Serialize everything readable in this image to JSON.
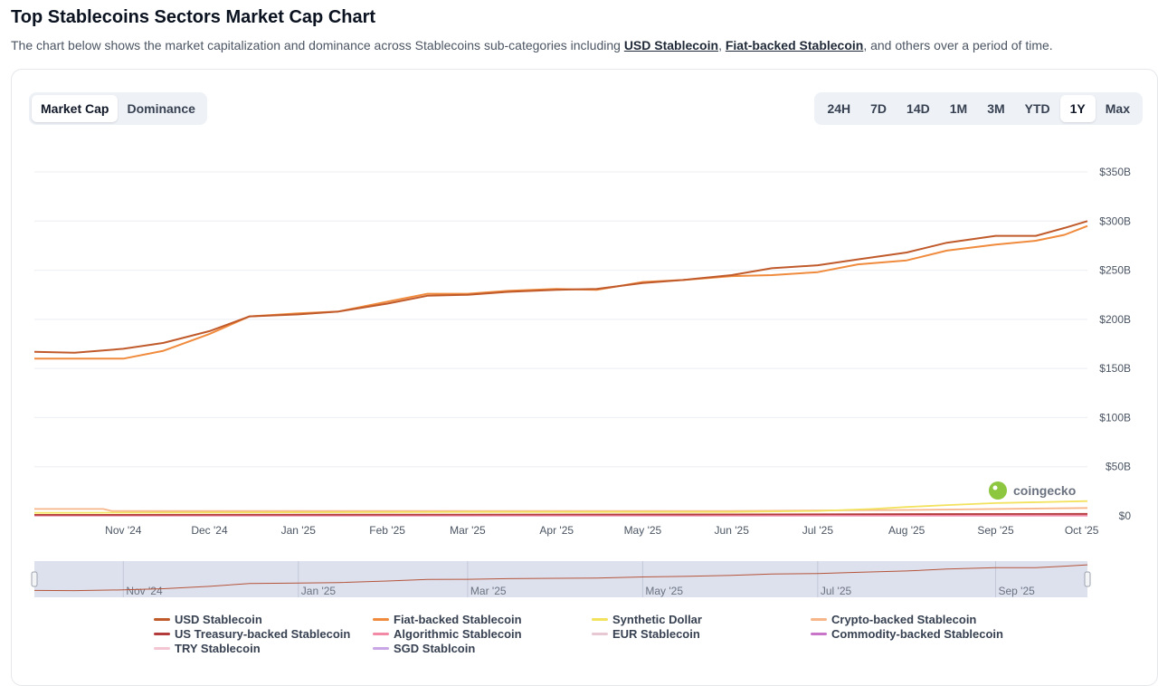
{
  "header": {
    "title": "Top Stablecoins Sectors Market Cap Chart",
    "description_prefix": "The chart below shows the market capitalization and dominance across Stablecoins sub-categories including ",
    "link1": "USD Stablecoin",
    "sep": ", ",
    "link2": "Fiat-backed Stablecoin",
    "description_suffix": ", and others over a period of time."
  },
  "metric_tabs": [
    {
      "label": "Market Cap",
      "active": true
    },
    {
      "label": "Dominance",
      "active": false
    }
  ],
  "range_tabs": [
    {
      "label": "24H",
      "active": false
    },
    {
      "label": "7D",
      "active": false
    },
    {
      "label": "14D",
      "active": false
    },
    {
      "label": "1M",
      "active": false
    },
    {
      "label": "3M",
      "active": false
    },
    {
      "label": "YTD",
      "active": false
    },
    {
      "label": "1Y",
      "active": true
    },
    {
      "label": "Max",
      "active": false
    }
  ],
  "watermark": "coingecko",
  "chart_data": {
    "type": "line",
    "title": "",
    "xlabel": "",
    "ylabel": "",
    "x_domain": [
      "2024-10-01",
      "2025-10-03"
    ],
    "ylim": [
      0,
      350
    ],
    "y_unit": "B USD",
    "y_ticks": [
      {
        "value": 0,
        "label": "$0"
      },
      {
        "value": 50,
        "label": "$50B"
      },
      {
        "value": 100,
        "label": "$100B"
      },
      {
        "value": 150,
        "label": "$150B"
      },
      {
        "value": 200,
        "label": "$200B"
      },
      {
        "value": 250,
        "label": "$250B"
      },
      {
        "value": 300,
        "label": "$300B"
      },
      {
        "value": 350,
        "label": "$350B"
      }
    ],
    "x_ticks": [
      {
        "date": "2024-11-01",
        "label": "Nov '24"
      },
      {
        "date": "2024-12-01",
        "label": "Dec '24"
      },
      {
        "date": "2025-01-01",
        "label": "Jan '25"
      },
      {
        "date": "2025-02-01",
        "label": "Feb '25"
      },
      {
        "date": "2025-03-01",
        "label": "Mar '25"
      },
      {
        "date": "2025-04-01",
        "label": "Apr '25"
      },
      {
        "date": "2025-05-01",
        "label": "May '25"
      },
      {
        "date": "2025-06-01",
        "label": "Jun '25"
      },
      {
        "date": "2025-07-01",
        "label": "Jul '25"
      },
      {
        "date": "2025-08-01",
        "label": "Aug '25"
      },
      {
        "date": "2025-09-01",
        "label": "Sep '25"
      },
      {
        "date": "2025-10-01",
        "label": "Oct '25"
      }
    ],
    "grid": true,
    "legend_position": "bottom",
    "series": [
      {
        "name": "USD Stablecoin",
        "color": "#c05a2b",
        "points": [
          [
            "2024-10-01",
            167
          ],
          [
            "2024-10-15",
            166
          ],
          [
            "2024-11-01",
            170
          ],
          [
            "2024-11-15",
            176
          ],
          [
            "2024-12-01",
            188
          ],
          [
            "2024-12-15",
            203
          ],
          [
            "2025-01-01",
            205
          ],
          [
            "2025-01-15",
            208
          ],
          [
            "2025-02-01",
            216
          ],
          [
            "2025-02-15",
            224
          ],
          [
            "2025-03-01",
            225
          ],
          [
            "2025-03-15",
            228
          ],
          [
            "2025-04-01",
            230
          ],
          [
            "2025-04-15",
            231
          ],
          [
            "2025-05-01",
            237
          ],
          [
            "2025-05-15",
            240
          ],
          [
            "2025-06-01",
            245
          ],
          [
            "2025-06-15",
            252
          ],
          [
            "2025-07-01",
            255
          ],
          [
            "2025-07-15",
            261
          ],
          [
            "2025-08-01",
            268
          ],
          [
            "2025-08-15",
            278
          ],
          [
            "2025-09-01",
            285
          ],
          [
            "2025-09-15",
            285
          ],
          [
            "2025-09-25",
            293
          ],
          [
            "2025-10-03",
            300
          ]
        ]
      },
      {
        "name": "Fiat-backed Stablecoin",
        "color": "#f08a3c",
        "points": [
          [
            "2024-10-01",
            160
          ],
          [
            "2024-10-15",
            160
          ],
          [
            "2024-11-01",
            160
          ],
          [
            "2024-11-15",
            168
          ],
          [
            "2024-12-01",
            185
          ],
          [
            "2024-12-15",
            203
          ],
          [
            "2025-01-01",
            206
          ],
          [
            "2025-01-15",
            208
          ],
          [
            "2025-02-01",
            218
          ],
          [
            "2025-02-15",
            226
          ],
          [
            "2025-03-01",
            226
          ],
          [
            "2025-03-15",
            229
          ],
          [
            "2025-04-01",
            231
          ],
          [
            "2025-04-15",
            230
          ],
          [
            "2025-05-01",
            238
          ],
          [
            "2025-05-15",
            240
          ],
          [
            "2025-06-01",
            244
          ],
          [
            "2025-06-15",
            245
          ],
          [
            "2025-07-01",
            248
          ],
          [
            "2025-07-15",
            256
          ],
          [
            "2025-08-01",
            260
          ],
          [
            "2025-08-15",
            270
          ],
          [
            "2025-09-01",
            276
          ],
          [
            "2025-09-15",
            280
          ],
          [
            "2025-09-25",
            286
          ],
          [
            "2025-10-03",
            295
          ]
        ]
      },
      {
        "name": "Synthetic Dollar",
        "color": "#f2e25e",
        "points": [
          [
            "2024-10-01",
            3
          ],
          [
            "2025-03-01",
            4
          ],
          [
            "2025-06-01",
            4
          ],
          [
            "2025-07-01",
            5
          ],
          [
            "2025-07-20",
            7
          ],
          [
            "2025-08-01",
            9
          ],
          [
            "2025-08-15",
            11
          ],
          [
            "2025-09-01",
            13
          ],
          [
            "2025-10-03",
            15
          ]
        ]
      },
      {
        "name": "Crypto-backed Stablecoin",
        "color": "#f7b58a",
        "points": [
          [
            "2024-10-01",
            7
          ],
          [
            "2024-10-25",
            7
          ],
          [
            "2024-10-28",
            5
          ],
          [
            "2025-03-01",
            5
          ],
          [
            "2025-06-01",
            5
          ],
          [
            "2025-08-01",
            6
          ],
          [
            "2025-10-03",
            8
          ]
        ]
      },
      {
        "name": "US Treasury-backed Stablecoin",
        "color": "#b43b3b",
        "points": [
          [
            "2024-10-01",
            1
          ],
          [
            "2025-06-01",
            1.5
          ],
          [
            "2025-10-03",
            2
          ]
        ]
      },
      {
        "name": "Algorithmic Stablecoin",
        "color": "#f28aa5",
        "points": [
          [
            "2024-10-01",
            0.5
          ],
          [
            "2025-10-03",
            0.5
          ]
        ]
      },
      {
        "name": "EUR Stablecoin",
        "color": "#e7c8d3",
        "points": [
          [
            "2024-10-01",
            0.3
          ],
          [
            "2025-10-03",
            0.4
          ]
        ]
      },
      {
        "name": "Commodity-backed Stablecoin",
        "color": "#c774c9",
        "points": [
          [
            "2024-10-01",
            0.8
          ],
          [
            "2025-10-03",
            1.2
          ]
        ]
      },
      {
        "name": "TRY Stablecoin",
        "color": "#f4c6d4",
        "points": [
          [
            "2024-10-01",
            0.1
          ],
          [
            "2025-10-03",
            0.1
          ]
        ]
      },
      {
        "name": "SGD Stablcoin",
        "color": "#c9a6e6",
        "points": [
          [
            "2024-10-01",
            0.05
          ],
          [
            "2025-10-03",
            0.05
          ]
        ]
      }
    ],
    "navigator_ticks": [
      {
        "date": "2024-11-01",
        "label": "Nov '24"
      },
      {
        "date": "2025-01-01",
        "label": "Jan '25"
      },
      {
        "date": "2025-03-01",
        "label": "Mar '25"
      },
      {
        "date": "2025-05-01",
        "label": "May '25"
      },
      {
        "date": "2025-07-01",
        "label": "Jul '25"
      },
      {
        "date": "2025-09-01",
        "label": "Sep '25"
      }
    ]
  }
}
